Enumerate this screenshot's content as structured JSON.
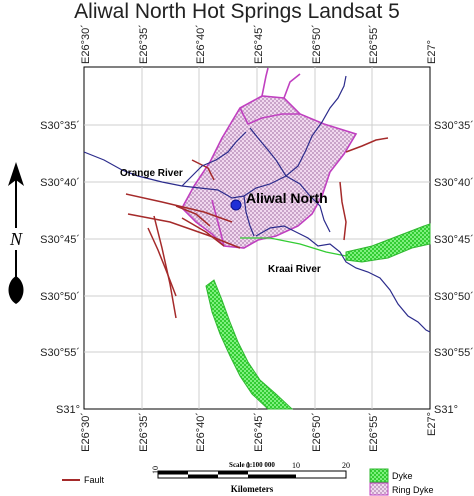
{
  "title": "Aliwal North Hot Springs Landsat 5",
  "longitudes": [
    "E26°30´",
    "E26°35´",
    "E26°40´",
    "E26°45´",
    "E26°50´",
    "E26°55´",
    "E27°"
  ],
  "latitudes": [
    "S30°35´",
    "S30°40´",
    "S30°45´",
    "S30°50´",
    "S30°55´",
    "S31°"
  ],
  "north_arrow": {
    "letter": "N"
  },
  "labels": {
    "town": "Aliwal North",
    "orange_river": "Orange River",
    "kraai_river": "Kraai River"
  },
  "scale": {
    "text": "Scale 1:100 000",
    "unit": "Kilometers",
    "ticks": [
      "10",
      "0",
      "10",
      "20"
    ]
  },
  "legend": [
    {
      "label": "Fault",
      "symbol": "line",
      "color": "#a52a2a"
    },
    {
      "label": "Dyke",
      "symbol": "checker",
      "color": "#33dd33"
    },
    {
      "label": "Ring Dyke",
      "symbol": "checker",
      "color": "#c040c0"
    }
  ],
  "colors": {
    "river": "#2c2c8c",
    "fault": "#a52a2a",
    "ring_dyke": "#c040c0",
    "dyke": "#33dd33",
    "town_dot": "#1f2fd6",
    "graticule": "#cfcfcf"
  }
}
